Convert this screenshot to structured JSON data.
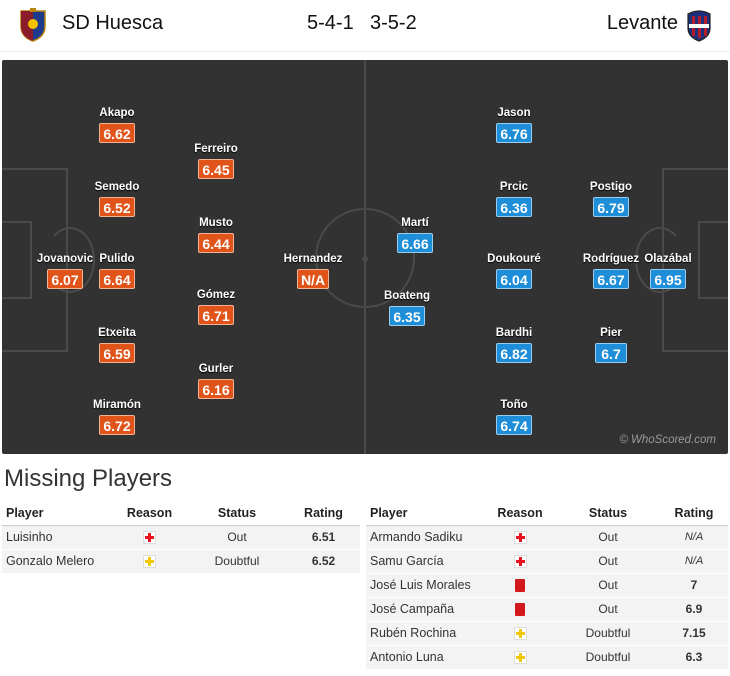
{
  "header": {
    "home_team": "SD Huesca",
    "away_team": "Levante",
    "home_formation": "5-4-1",
    "away_formation": "3-5-2"
  },
  "colors": {
    "home_rating": "#e0541a",
    "away_rating": "#1f8ed8",
    "pitch": "#323232"
  },
  "home_players": [
    {
      "name": "Jovanovic",
      "rating": "6.07"
    },
    {
      "name": "Akapo",
      "rating": "6.62"
    },
    {
      "name": "Semedo",
      "rating": "6.52"
    },
    {
      "name": "Pulido",
      "rating": "6.64"
    },
    {
      "name": "Etxeita",
      "rating": "6.59"
    },
    {
      "name": "Miramón",
      "rating": "6.72"
    },
    {
      "name": "Ferreiro",
      "rating": "6.45"
    },
    {
      "name": "Musto",
      "rating": "6.44"
    },
    {
      "name": "Gómez",
      "rating": "6.71"
    },
    {
      "name": "Gurler",
      "rating": "6.16"
    },
    {
      "name": "Hernandez",
      "rating": "N/A"
    }
  ],
  "away_players": [
    {
      "name": "Olazábal",
      "rating": "6.95"
    },
    {
      "name": "Postigo",
      "rating": "6.79"
    },
    {
      "name": "Rodríguez",
      "rating": "6.67"
    },
    {
      "name": "Pier",
      "rating": "6.7"
    },
    {
      "name": "Jason",
      "rating": "6.76"
    },
    {
      "name": "Prcic",
      "rating": "6.36"
    },
    {
      "name": "Doukouré",
      "rating": "6.04"
    },
    {
      "name": "Bardhi",
      "rating": "6.82"
    },
    {
      "name": "Toño",
      "rating": "6.74"
    },
    {
      "name": "Martí",
      "rating": "6.66"
    },
    {
      "name": "Boateng",
      "rating": "6.35"
    }
  ],
  "watermark": "© WhoScored.com",
  "missing": {
    "title": "Missing Players",
    "headers": {
      "player": "Player",
      "reason": "Reason",
      "status": "Status",
      "rating": "Rating"
    },
    "home": [
      {
        "player": "Luisinho",
        "reason": "injury-icon",
        "status": "Out",
        "rating": "6.51"
      },
      {
        "player": "Gonzalo Melero",
        "reason": "doubtful-icon",
        "status": "Doubtful",
        "rating": "6.52"
      }
    ],
    "away": [
      {
        "player": "Armando Sadiku",
        "reason": "injury-icon",
        "status": "Out",
        "rating": "N/A"
      },
      {
        "player": "Samu García",
        "reason": "injury-icon",
        "status": "Out",
        "rating": "N/A"
      },
      {
        "player": "José Luis Morales",
        "reason": "red-card-icon",
        "status": "Out",
        "rating": "7"
      },
      {
        "player": "José Campaña",
        "reason": "red-card-icon",
        "status": "Out",
        "rating": "6.9"
      },
      {
        "player": "Rubén Rochina",
        "reason": "doubtful-icon",
        "status": "Doubtful",
        "rating": "7.15"
      },
      {
        "player": "Antonio Luna",
        "reason": "doubtful-icon",
        "status": "Doubtful",
        "rating": "6.3"
      }
    ]
  }
}
